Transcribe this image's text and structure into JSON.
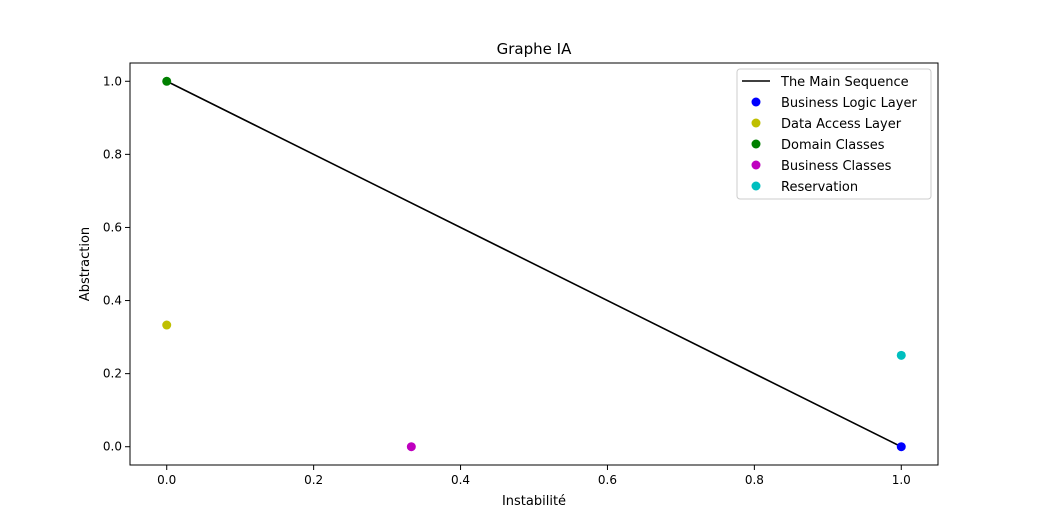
{
  "chart_data": {
    "type": "scatter",
    "title": "Graphe IA",
    "xlabel": "Instabilité",
    "ylabel": "Abstraction",
    "xlim": [
      -0.05,
      1.05
    ],
    "ylim": [
      -0.05,
      1.05
    ],
    "xticks": [
      0.0,
      0.2,
      0.4,
      0.6,
      0.8,
      1.0
    ],
    "yticks": [
      0.0,
      0.2,
      0.4,
      0.6,
      0.8,
      1.0
    ],
    "xtick_labels": [
      "0.0",
      "0.2",
      "0.4",
      "0.6",
      "0.8",
      "1.0"
    ],
    "ytick_labels": [
      "0.0",
      "0.2",
      "0.4",
      "0.6",
      "0.8",
      "1.0"
    ],
    "grid": false,
    "legend_position": "top-right",
    "main_sequence": {
      "name": "The Main Sequence",
      "color": "#000000",
      "x": [
        0.0,
        1.0
      ],
      "y": [
        1.0,
        0.0
      ]
    },
    "series": [
      {
        "name": "Business Logic Layer",
        "color": "#0000ff",
        "x": 1.0,
        "y": 0.0
      },
      {
        "name": "Data Access Layer",
        "color": "#bfbf00",
        "x": 0.0,
        "y": 0.333
      },
      {
        "name": "Domain Classes",
        "color": "#008000",
        "x": 0.0,
        "y": 1.0
      },
      {
        "name": "Business Classes",
        "color": "#bf00bf",
        "x": 0.333,
        "y": 0.0
      },
      {
        "name": "Reservation",
        "color": "#00bfbf",
        "x": 1.0,
        "y": 0.25
      }
    ]
  }
}
